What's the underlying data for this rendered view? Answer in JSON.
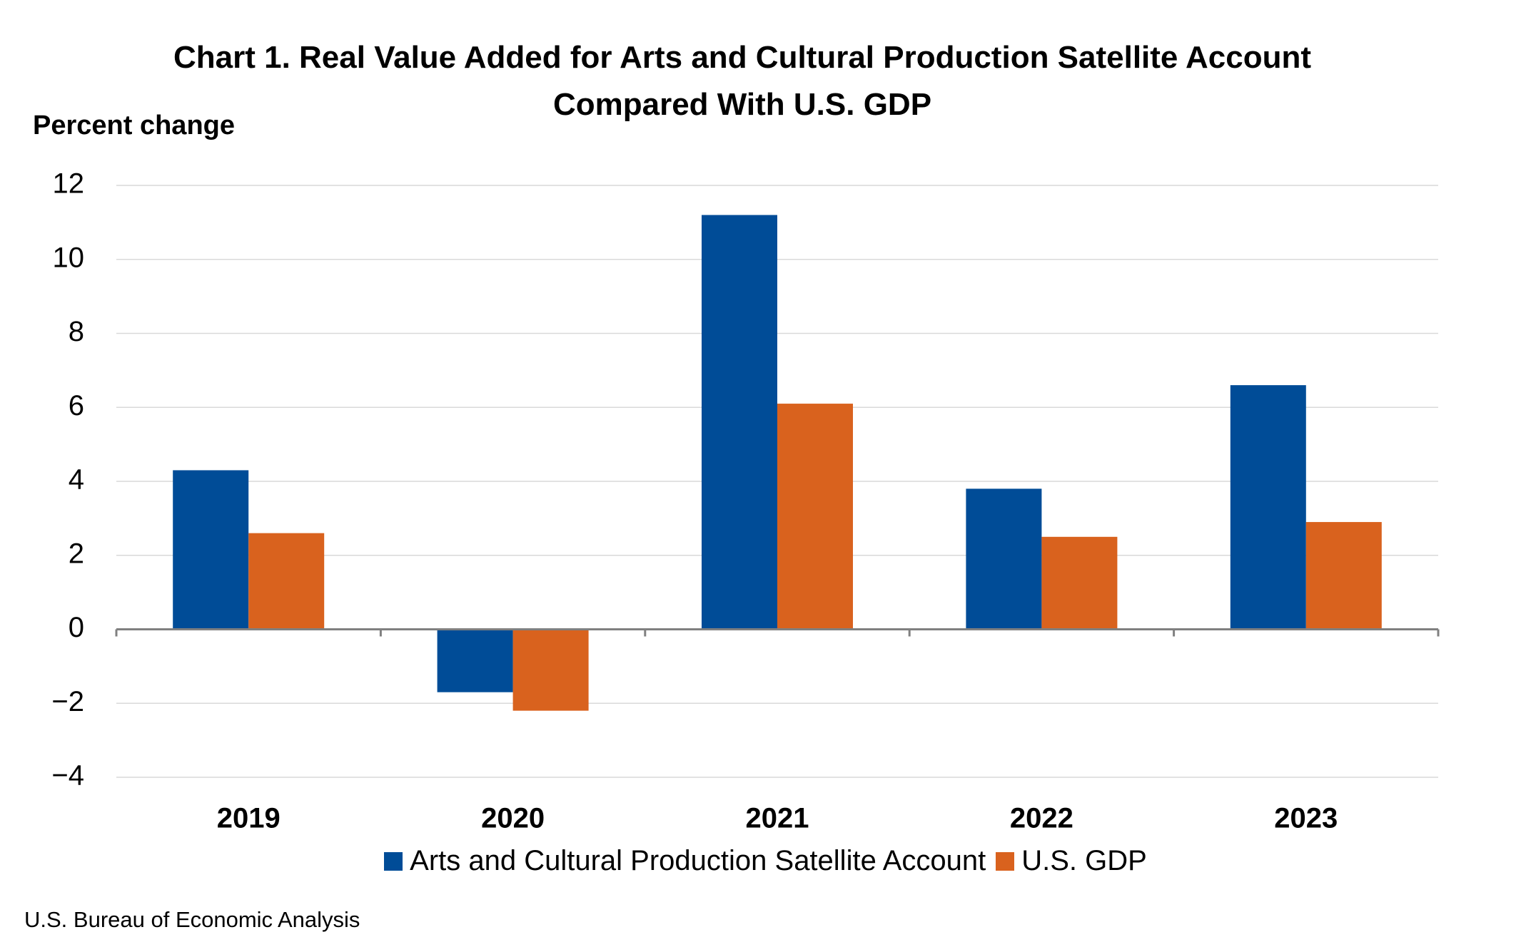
{
  "chart_data": {
    "type": "bar",
    "title": "Chart 1. Real Value Added for Arts and Cultural Production Satellite Account Compared With U.S. GDP",
    "y_label": "Percent change",
    "source": "U.S. Bureau of Economic Analysis",
    "categories": [
      "2019",
      "2020",
      "2021",
      "2022",
      "2023"
    ],
    "series": [
      {
        "name": "Arts and Cultural Production Satellite Account",
        "color": "#004c97",
        "values": [
          4.3,
          -1.7,
          11.2,
          3.8,
          6.6
        ]
      },
      {
        "name": "U.S. GDP",
        "color": "#d9621e",
        "values": [
          2.6,
          -2.2,
          6.1,
          2.5,
          2.9
        ]
      }
    ],
    "ylim": [
      -4,
      12
    ],
    "yticks": [
      {
        "value": -4,
        "label": "−4"
      },
      {
        "value": -2,
        "label": "−2"
      },
      0,
      2,
      4,
      6,
      8,
      10,
      12
    ],
    "grid": true
  }
}
